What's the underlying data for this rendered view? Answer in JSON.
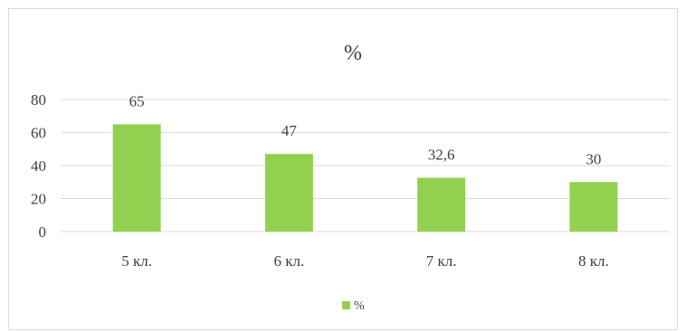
{
  "chart_data": {
    "type": "bar",
    "title": "%",
    "categories": [
      "5 кл.",
      "6 кл.",
      "7 кл.",
      "8 кл."
    ],
    "series": [
      {
        "name": "%",
        "values": [
          65,
          47,
          32.6,
          30
        ],
        "labels": [
          "65",
          "47",
          "32,6",
          "30"
        ]
      }
    ],
    "y_ticks": [
      "0",
      "20",
      "40",
      "60",
      "80"
    ],
    "ylim": [
      0,
      80
    ],
    "grid": true,
    "legend": "bottom",
    "colors": {
      "bar": "#92d050",
      "grid": "#d9d9d9",
      "text": "#404040"
    }
  }
}
